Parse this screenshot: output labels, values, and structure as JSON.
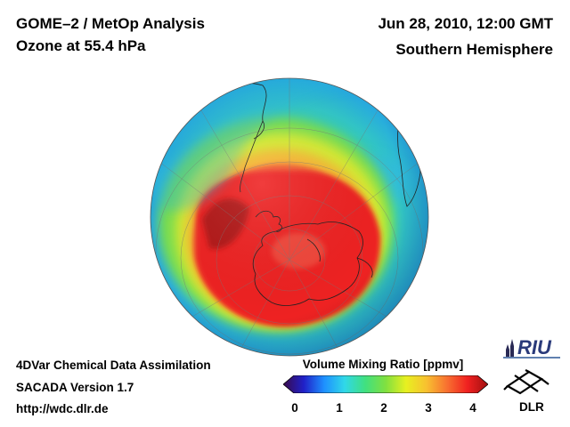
{
  "header": {
    "title_left_1": "GOME–2 / MetOp Analysis",
    "title_left_2": "Ozone at 55.4 hPa",
    "title_right_1": "Jun 28, 2010, 12:00 GMT",
    "title_right_2": "Southern Hemisphere"
  },
  "footer": {
    "line1": "4DVar Chemical Data Assimilation",
    "line2": "SACADA Version 1.7",
    "line3": "http://wdc.dlr.de"
  },
  "legend": {
    "title": "Volume Mixing Ratio [ppmv]",
    "ticks": [
      "0",
      "1",
      "2",
      "3",
      "4"
    ],
    "colors": [
      "#3a0a4a",
      "#2020c8",
      "#1e90ff",
      "#30d8e8",
      "#40e080",
      "#80e040",
      "#e8f020",
      "#f8c030",
      "#f87030",
      "#f02020",
      "#a01010"
    ]
  },
  "logos": {
    "riu": "RIU",
    "dlr": "DLR"
  }
}
